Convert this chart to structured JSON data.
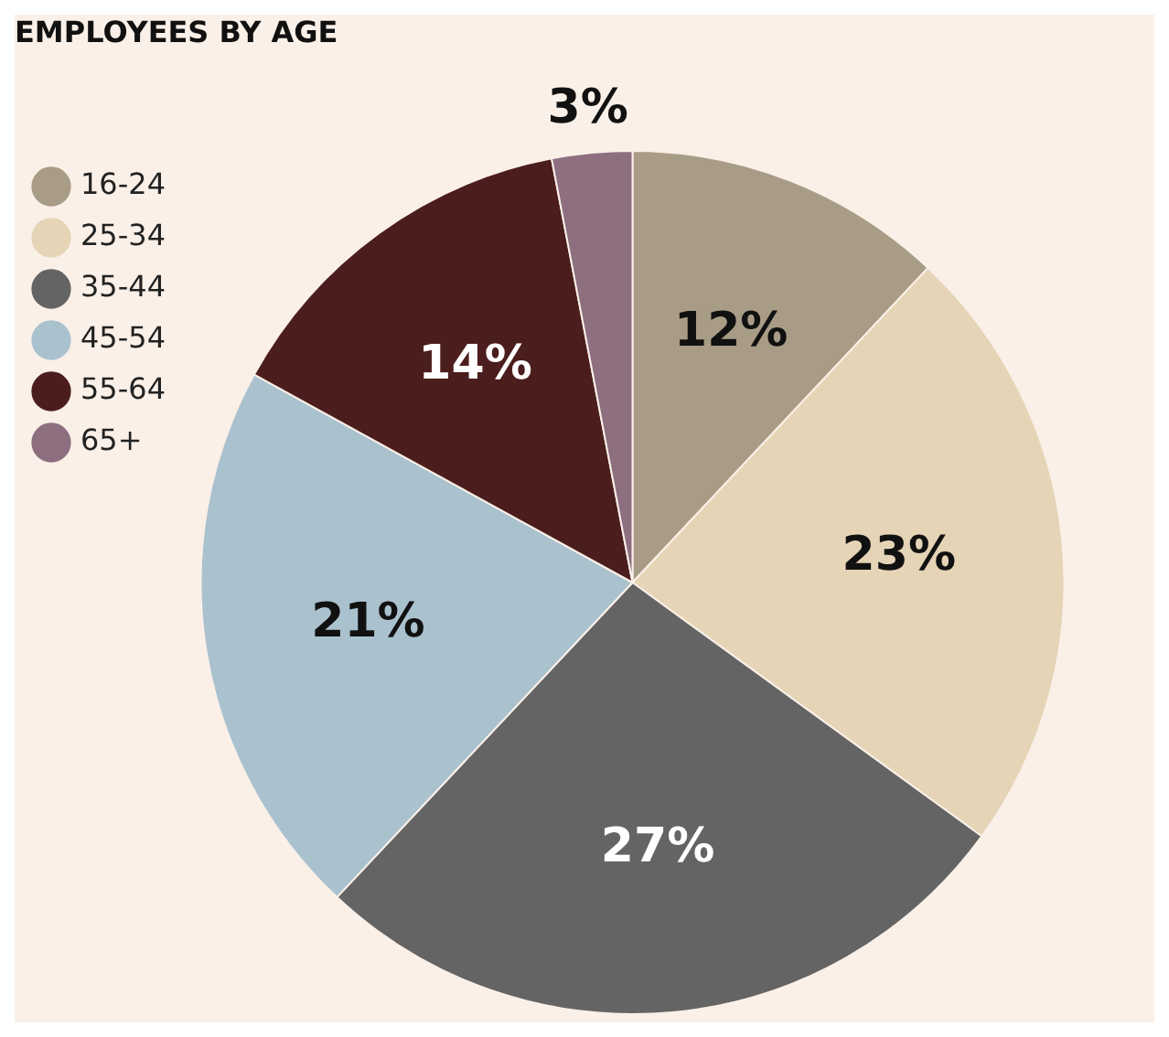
{
  "chart_data": {
    "type": "pie",
    "title": "EMPLOYEES BY AGE",
    "categories": [
      "16-24",
      "25-34",
      "35-44",
      "45-54",
      "55-64",
      "65+"
    ],
    "values": [
      12,
      23,
      27,
      21,
      14,
      3
    ],
    "colors": [
      "#a89c86",
      "#e5d4b6",
      "#646464",
      "#aac1ce",
      "#4b1e1d",
      "#8d6f80"
    ],
    "value_labels": [
      "12%",
      "23%",
      "27%",
      "21%",
      "14%",
      "3%"
    ],
    "legend": "top left"
  }
}
